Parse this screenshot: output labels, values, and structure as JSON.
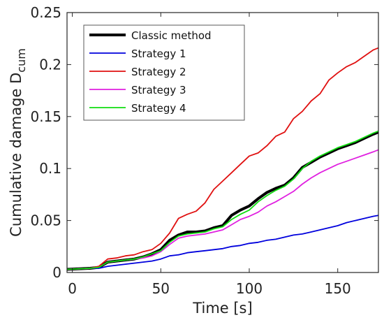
{
  "chart_data": {
    "type": "line",
    "xlabel": "Time [s]",
    "ylabel_main": "Cumulative damage D",
    "ylabel_sub": "cum",
    "xlim": [
      -3,
      173
    ],
    "ylim": [
      0,
      0.25
    ],
    "xticks": [
      0,
      50,
      100,
      150
    ],
    "xtick_labels": [
      "0",
      "50",
      "100",
      "150"
    ],
    "yticks": [
      0,
      0.05,
      0.1,
      0.15,
      0.2,
      0.25
    ],
    "ytick_labels": [
      "0",
      "0.05",
      "0.1",
      "0.15",
      "0.2",
      "0.25"
    ],
    "grid": false,
    "legend_position": "top-left",
    "series": [
      {
        "name": "Classic method",
        "color": "#000000",
        "x": [
          -3,
          10,
          15,
          20,
          25,
          30,
          35,
          40,
          45,
          50,
          55,
          60,
          65,
          70,
          75,
          80,
          85,
          90,
          95,
          100,
          105,
          110,
          115,
          120,
          125,
          130,
          135,
          140,
          145,
          150,
          155,
          160,
          165,
          170,
          173
        ],
        "y": [
          0.003,
          0.004,
          0.005,
          0.01,
          0.011,
          0.012,
          0.013,
          0.015,
          0.018,
          0.022,
          0.031,
          0.036,
          0.039,
          0.039,
          0.04,
          0.043,
          0.045,
          0.055,
          0.06,
          0.064,
          0.071,
          0.077,
          0.081,
          0.084,
          0.091,
          0.101,
          0.106,
          0.111,
          0.115,
          0.119,
          0.122,
          0.125,
          0.129,
          0.133,
          0.135
        ]
      },
      {
        "name": "Strategy 1",
        "color": "#0000dd",
        "x": [
          -3,
          10,
          15,
          20,
          25,
          30,
          35,
          40,
          45,
          50,
          55,
          60,
          65,
          70,
          75,
          80,
          85,
          90,
          95,
          100,
          105,
          110,
          115,
          120,
          125,
          130,
          135,
          140,
          145,
          150,
          155,
          160,
          165,
          170,
          173
        ],
        "y": [
          0.003,
          0.004,
          0.004,
          0.006,
          0.007,
          0.008,
          0.009,
          0.01,
          0.011,
          0.013,
          0.016,
          0.017,
          0.019,
          0.02,
          0.021,
          0.022,
          0.023,
          0.025,
          0.026,
          0.028,
          0.029,
          0.031,
          0.032,
          0.034,
          0.036,
          0.037,
          0.039,
          0.041,
          0.043,
          0.045,
          0.048,
          0.05,
          0.052,
          0.054,
          0.055
        ]
      },
      {
        "name": "Strategy 2",
        "color": "#e01010",
        "x": [
          -3,
          10,
          15,
          20,
          25,
          30,
          35,
          40,
          45,
          50,
          55,
          60,
          65,
          70,
          75,
          80,
          85,
          90,
          95,
          100,
          105,
          110,
          115,
          120,
          125,
          130,
          135,
          140,
          145,
          150,
          155,
          160,
          165,
          170,
          173
        ],
        "y": [
          0.003,
          0.004,
          0.006,
          0.013,
          0.014,
          0.016,
          0.017,
          0.02,
          0.022,
          0.028,
          0.038,
          0.052,
          0.056,
          0.059,
          0.067,
          0.08,
          0.088,
          0.096,
          0.104,
          0.112,
          0.115,
          0.122,
          0.131,
          0.135,
          0.148,
          0.155,
          0.165,
          0.172,
          0.185,
          0.192,
          0.198,
          0.202,
          0.208,
          0.214,
          0.216
        ]
      },
      {
        "name": "Strategy 3",
        "color": "#e020e0",
        "x": [
          -3,
          10,
          15,
          20,
          25,
          30,
          35,
          40,
          45,
          50,
          55,
          60,
          65,
          70,
          75,
          80,
          85,
          90,
          95,
          100,
          105,
          110,
          115,
          120,
          125,
          130,
          135,
          140,
          145,
          150,
          155,
          160,
          165,
          170,
          173
        ],
        "y": [
          0.003,
          0.004,
          0.005,
          0.01,
          0.011,
          0.012,
          0.013,
          0.014,
          0.016,
          0.02,
          0.027,
          0.033,
          0.035,
          0.036,
          0.037,
          0.039,
          0.041,
          0.046,
          0.051,
          0.054,
          0.058,
          0.064,
          0.068,
          0.073,
          0.078,
          0.085,
          0.091,
          0.096,
          0.1,
          0.104,
          0.107,
          0.11,
          0.113,
          0.116,
          0.118
        ]
      },
      {
        "name": "Strategy 4",
        "color": "#10dd10",
        "x": [
          -3,
          10,
          15,
          20,
          25,
          30,
          35,
          40,
          45,
          50,
          55,
          60,
          65,
          70,
          75,
          80,
          85,
          90,
          95,
          100,
          105,
          110,
          115,
          120,
          125,
          130,
          135,
          140,
          145,
          150,
          155,
          160,
          165,
          170,
          173
        ],
        "y": [
          0.003,
          0.004,
          0.005,
          0.01,
          0.011,
          0.012,
          0.013,
          0.015,
          0.018,
          0.021,
          0.029,
          0.035,
          0.037,
          0.038,
          0.039,
          0.042,
          0.044,
          0.051,
          0.056,
          0.06,
          0.068,
          0.074,
          0.079,
          0.083,
          0.09,
          0.1,
          0.107,
          0.112,
          0.116,
          0.12,
          0.123,
          0.126,
          0.13,
          0.134,
          0.136
        ]
      }
    ]
  }
}
